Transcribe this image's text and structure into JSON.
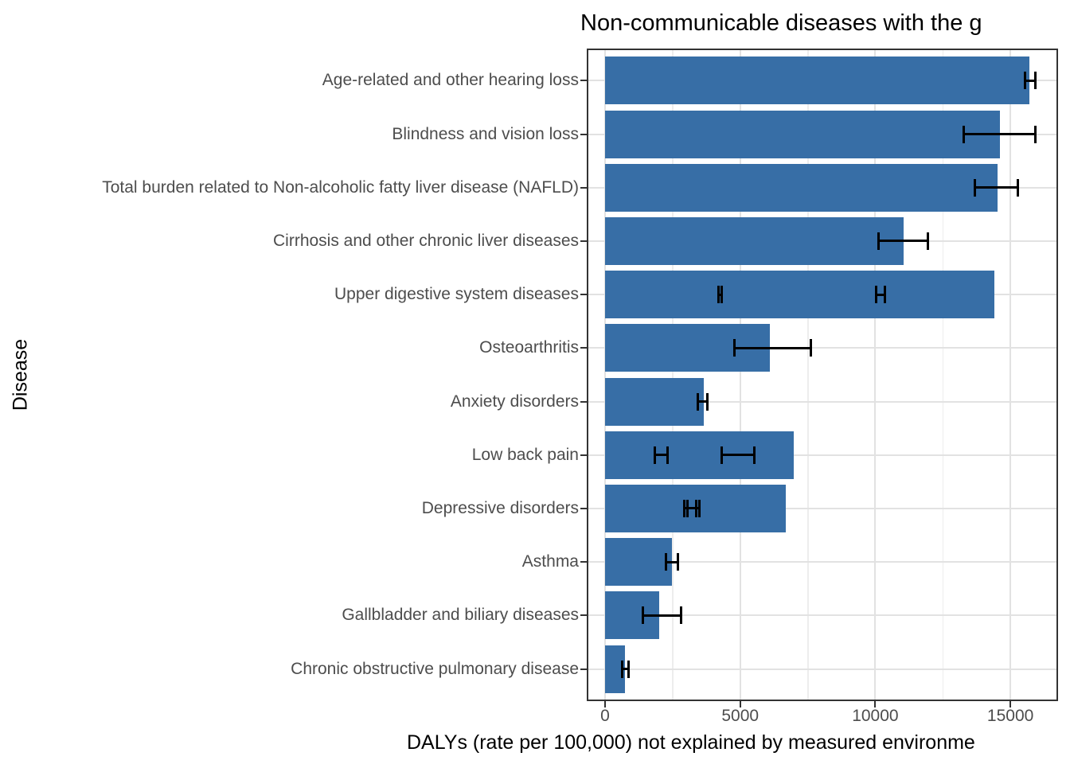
{
  "chart_data": {
    "type": "bar",
    "orientation": "horizontal",
    "title": "Non-communicable diseases with the g",
    "xlabel": "DALYs (rate per 100,000) not explained by measured environme",
    "ylabel": "Disease",
    "x_ticks": [
      0,
      5000,
      10000,
      15000
    ],
    "x_tick_labels": [
      "0",
      "5000",
      "10000",
      "15000"
    ],
    "x_minor_ticks": [
      2500,
      7500,
      12500
    ],
    "xlim": [
      -680,
      16765
    ],
    "grid": true,
    "legend": "none",
    "bar_color": "#376EA6",
    "errorbar_color": "#000000",
    "categories": [
      "Age-related and other hearing loss",
      "Blindness and vision loss",
      "Total burden related to Non-alcoholic fatty liver disease (NAFLD)",
      "Cirrhosis and other chronic liver diseases",
      "Upper digestive system diseases",
      "Osteoarthritis",
      "Anxiety disorders",
      "Low back pain",
      "Depressive disorders",
      "Asthma",
      "Gallbladder and biliary diseases",
      "Chronic obstructive pulmonary disease"
    ],
    "values": [
      15700,
      14600,
      14530,
      11050,
      14420,
      6100,
      3645,
      6975,
      6685,
      2475,
      2010,
      725
    ],
    "error_bars": [
      [
        [
          15490,
          15980
        ]
      ],
      [
        [
          13230,
          15960
        ]
      ],
      [
        [
          13630,
          15320
        ]
      ],
      [
        [
          10085,
          11980
        ]
      ],
      [
        [
          4150,
          4350
        ],
        [
          9990,
          10410
        ]
      ],
      [
        [
          4730,
          7650
        ]
      ],
      [
        [
          3375,
          3820
        ]
      ],
      [
        [
          1810,
          2355
        ],
        [
          4265,
          5570
        ]
      ],
      [
        [
          2895,
          3420
        ],
        [
          2995,
          3535
        ]
      ],
      [
        [
          2205,
          2745
        ]
      ],
      [
        [
          1365,
          2850
        ]
      ],
      [
        [
          585,
          920
        ]
      ]
    ]
  },
  "style": {
    "grid_major_color": "#e2e2e2",
    "grid_minor_color": "#ededed",
    "panel_border_color": "#333333",
    "axis_text_color": "#4d4d4d",
    "title_color": "#000000"
  }
}
